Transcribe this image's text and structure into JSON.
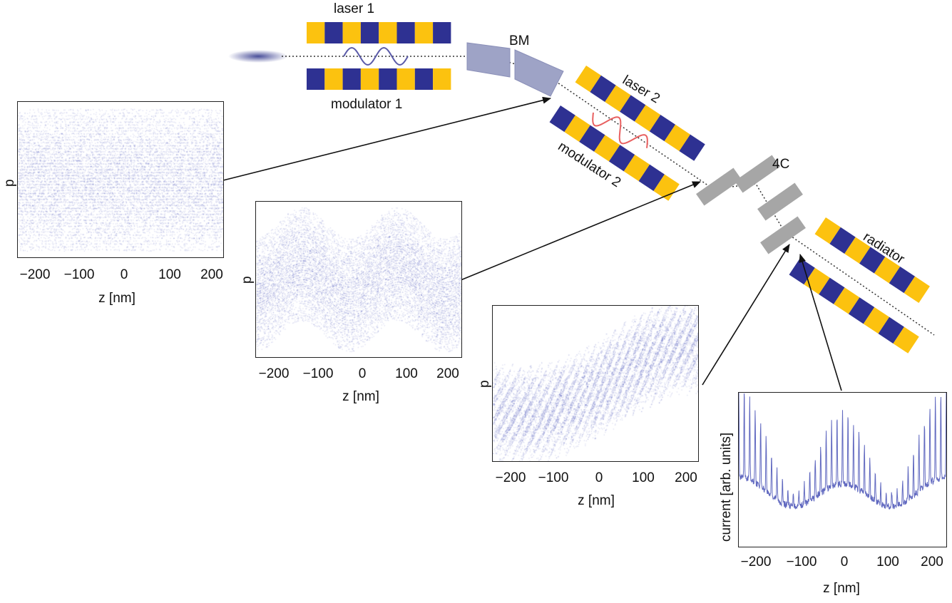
{
  "labels": {
    "laser1": "laser 1",
    "modulator1": "modulator 1",
    "bm": "BM",
    "laser2": "laser 2",
    "modulator2": "modulator 2",
    "fourc": "4C",
    "radiator": "radiator"
  },
  "colors": {
    "magnet_blue": "#2e3192",
    "magnet_yellow": "#fcc20f",
    "bend_magnet": "#9ea3c6",
    "chicane": "#a6a6a6",
    "laser_wave_1": "#5a5aa8",
    "laser_wave_2": "#e86060",
    "phase_space": "#3a44b0"
  },
  "plots": [
    {
      "name": "phase-space-initial",
      "xlabel": "z [nm]",
      "ylabel": "p",
      "xticks": [
        "−200",
        "−100",
        "0",
        "100",
        "200"
      ]
    },
    {
      "name": "phase-space-modulated",
      "xlabel": "z [nm]",
      "ylabel": "p",
      "xticks": [
        "−200",
        "−100",
        "0",
        "100",
        "200"
      ]
    },
    {
      "name": "phase-space-echo",
      "xlabel": "z [nm]",
      "ylabel": "p",
      "xticks": [
        "−200",
        "−100",
        "0",
        "100",
        "200"
      ]
    },
    {
      "name": "current-profile",
      "xlabel": "z [nm]",
      "ylabel": "current [arb. units]",
      "xticks": [
        "−200",
        "−100",
        "0",
        "100",
        "200"
      ]
    }
  ]
}
